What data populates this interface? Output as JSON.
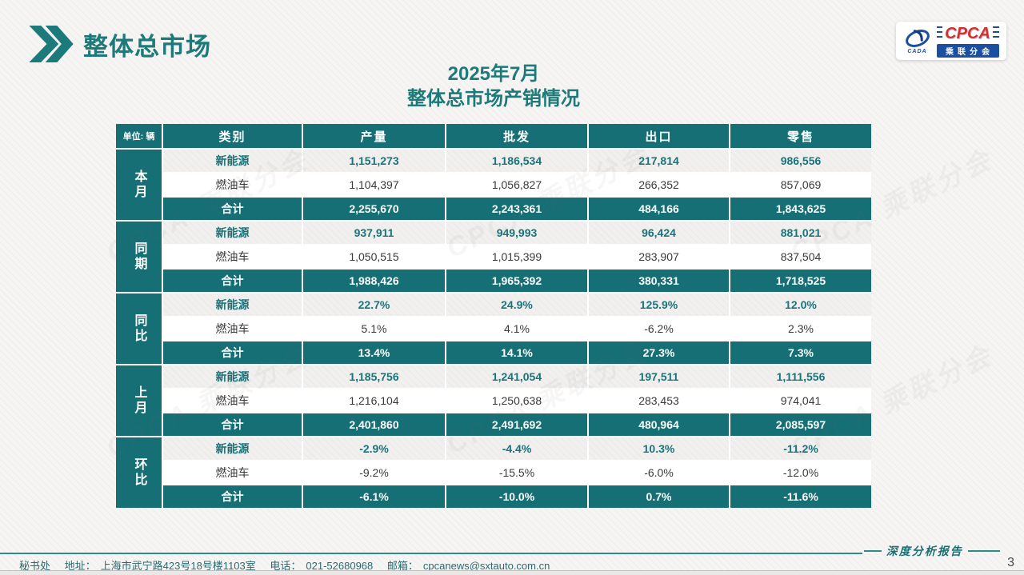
{
  "header": {
    "title": "整体总市场"
  },
  "slide_title": {
    "line1": "2025年7月",
    "line2": "整体总市场产销情况"
  },
  "logo": {
    "cpca": "CPCA",
    "sub": "乘联分会",
    "emblem": "CADA"
  },
  "watermark": "CPCA 乘联分会",
  "table": {
    "unit_label": "单位: 辆",
    "columns": [
      "类别",
      "产量",
      "批发",
      "出口",
      "零售"
    ],
    "groups": [
      {
        "label": "本月",
        "rows": [
          {
            "type": "ne",
            "label": "新能源",
            "values": [
              "1,151,273",
              "1,186,534",
              "217,814",
              "986,556"
            ]
          },
          {
            "type": "fuel",
            "label": "燃油车",
            "values": [
              "1,104,397",
              "1,056,827",
              "266,352",
              "857,069"
            ]
          },
          {
            "type": "total",
            "label": "合计",
            "values": [
              "2,255,670",
              "2,243,361",
              "484,166",
              "1,843,625"
            ]
          }
        ]
      },
      {
        "label": "同期",
        "rows": [
          {
            "type": "ne",
            "label": "新能源",
            "values": [
              "937,911",
              "949,993",
              "96,424",
              "881,021"
            ]
          },
          {
            "type": "fuel",
            "label": "燃油车",
            "values": [
              "1,050,515",
              "1,015,399",
              "283,907",
              "837,504"
            ]
          },
          {
            "type": "total",
            "label": "合计",
            "values": [
              "1,988,426",
              "1,965,392",
              "380,331",
              "1,718,525"
            ]
          }
        ]
      },
      {
        "label": "同比",
        "rows": [
          {
            "type": "ne",
            "label": "新能源",
            "values": [
              "22.7%",
              "24.9%",
              "125.9%",
              "12.0%"
            ]
          },
          {
            "type": "fuel",
            "label": "燃油车",
            "values": [
              "5.1%",
              "4.1%",
              "-6.2%",
              "2.3%"
            ]
          },
          {
            "type": "total",
            "label": "合计",
            "values": [
              "13.4%",
              "14.1%",
              "27.3%",
              "7.3%"
            ]
          }
        ]
      },
      {
        "label": "上月",
        "rows": [
          {
            "type": "ne",
            "label": "新能源",
            "values": [
              "1,185,756",
              "1,241,054",
              "197,511",
              "1,111,556"
            ]
          },
          {
            "type": "fuel",
            "label": "燃油车",
            "values": [
              "1,216,104",
              "1,250,638",
              "283,453",
              "974,041"
            ]
          },
          {
            "type": "total",
            "label": "合计",
            "values": [
              "2,401,860",
              "2,491,692",
              "480,964",
              "2,085,597"
            ]
          }
        ]
      },
      {
        "label": "环比",
        "rows": [
          {
            "type": "ne",
            "label": "新能源",
            "values": [
              "-2.9%",
              "-4.4%",
              "10.3%",
              "-11.2%"
            ]
          },
          {
            "type": "fuel",
            "label": "燃油车",
            "values": [
              "-9.2%",
              "-15.5%",
              "-6.0%",
              "-12.0%"
            ]
          },
          {
            "type": "total",
            "label": "合计",
            "values": [
              "-6.1%",
              "-10.0%",
              "0.7%",
              "-11.6%"
            ]
          }
        ]
      }
    ]
  },
  "footer": {
    "secretariat": "秘书处",
    "address_label": "地址：",
    "address": "上海市武宁路423号18号楼1103室",
    "phone_label": "电话：",
    "phone": "021-52680968",
    "email_label": "邮箱：",
    "email": "cpcanews@sxtauto.com.cn",
    "report_type": "深度分析报告",
    "page_number": "3"
  },
  "colors": {
    "teal": "#166F75",
    "heading_teal": "#1C7A7A",
    "ne_row_bg": "#F1F0EE",
    "footer_text": "#2B6A70",
    "logo_red": "#D2302C",
    "logo_blue": "#1C4FA0"
  }
}
